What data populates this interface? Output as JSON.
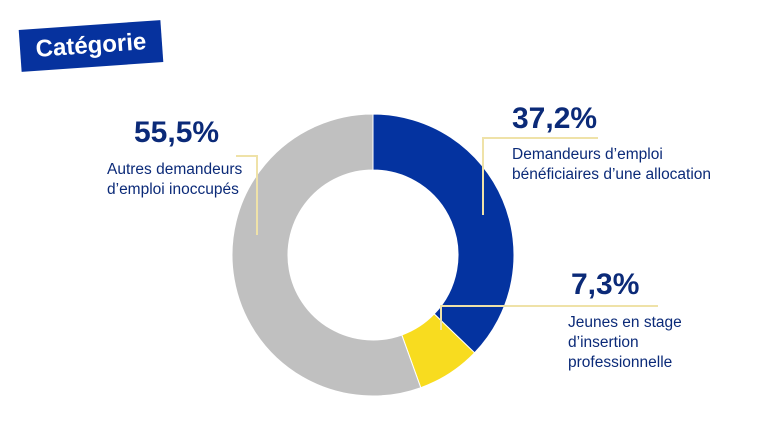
{
  "badge": {
    "title": "Catégorie"
  },
  "colors": {
    "badge_bg": "#06329e",
    "badge_text": "#ffffff",
    "text": "#0b2a78",
    "leader": "#efe2a8",
    "separator": "#ffffff"
  },
  "chart_data": {
    "type": "pie",
    "variant": "donut",
    "start": "12 o'clock, clockwise",
    "legend": "none (callout labels)",
    "slices": [
      {
        "label": "Demandeurs d’emploi\nbénéficiaires d’une allocation",
        "value": 37.2,
        "value_label": "37,2%",
        "color": "#0433a0"
      },
      {
        "label": "Jeunes en stage\nd’insertion\nprofessionnelle",
        "value": 7.3,
        "value_label": "7,3%",
        "color": "#f8dc1f"
      },
      {
        "label": "Autres demandeurs\nd’emploi inoccupés",
        "value": 55.5,
        "value_label": "55,5%",
        "color": "#c0c0c0"
      }
    ]
  }
}
